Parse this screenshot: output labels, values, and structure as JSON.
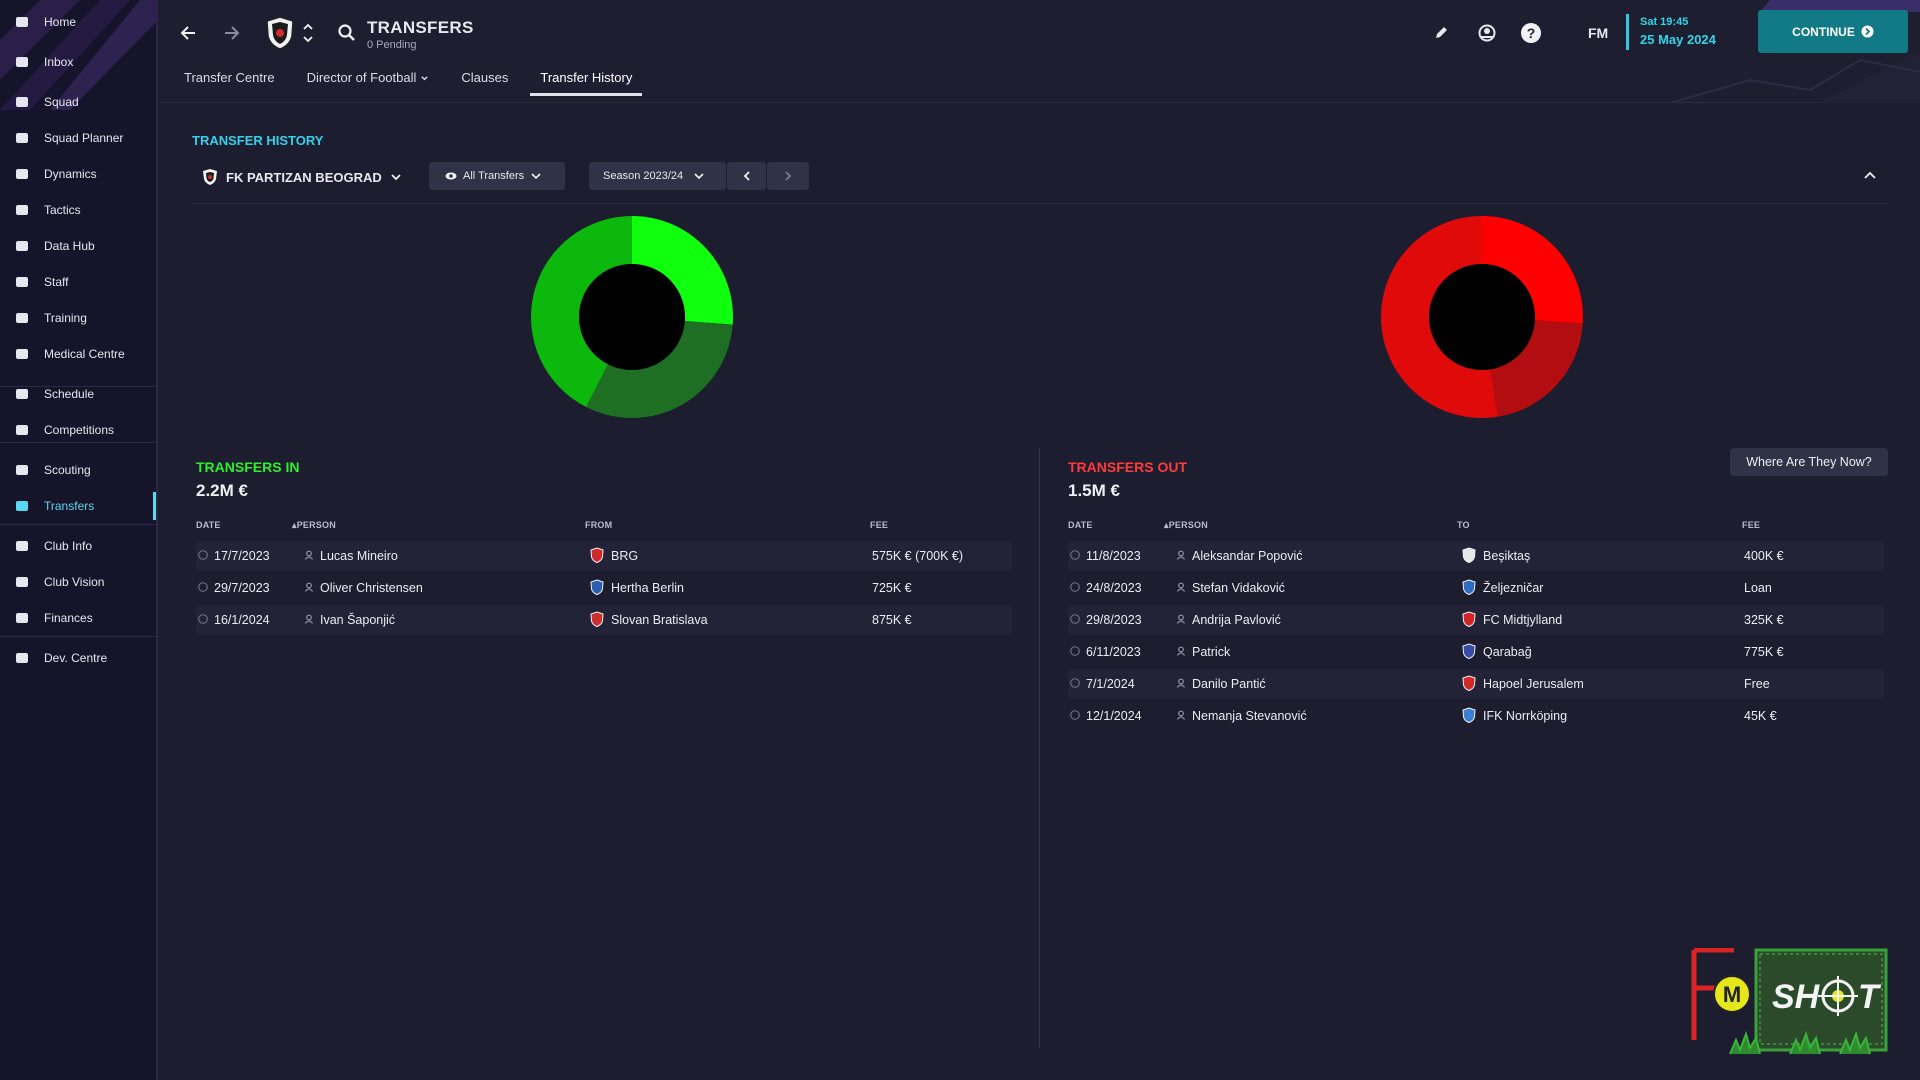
{
  "sidebar": {
    "items": [
      {
        "label": "Home",
        "icon": "home-icon"
      },
      {
        "label": "Inbox",
        "icon": "inbox-icon"
      },
      {
        "label": "Squad",
        "icon": "shirt-icon"
      },
      {
        "label": "Squad Planner",
        "icon": "clipboard-icon"
      },
      {
        "label": "Dynamics",
        "icon": "people-icon"
      },
      {
        "label": "Tactics",
        "icon": "tactics-board-icon"
      },
      {
        "label": "Data Hub",
        "icon": "data-hub-icon"
      },
      {
        "label": "Staff",
        "icon": "staff-icon"
      },
      {
        "label": "Training",
        "icon": "cone-icon"
      },
      {
        "label": "Medical Centre",
        "icon": "medical-kit-icon"
      },
      {
        "label": "Schedule",
        "icon": "calendar-icon"
      },
      {
        "label": "Competitions",
        "icon": "trophy-icon"
      },
      {
        "label": "Scouting",
        "icon": "magnifier-icon"
      },
      {
        "label": "Transfers",
        "icon": "transfer-cycle-icon",
        "active": true
      },
      {
        "label": "Club Info",
        "icon": "shield-icon"
      },
      {
        "label": "Club Vision",
        "icon": "stadium-icon"
      },
      {
        "label": "Finances",
        "icon": "money-icon"
      },
      {
        "label": "Dev. Centre",
        "icon": "progress-icon"
      }
    ]
  },
  "header": {
    "title": "TRANSFERS",
    "subtitle": "0 Pending",
    "fm_label": "FM",
    "time": "Sat 19:45",
    "date": "25 May 2024",
    "continue_label": "CONTINUE"
  },
  "tabs": [
    {
      "label": "Transfer Centre"
    },
    {
      "label": "Director of Football",
      "dropdown": true
    },
    {
      "label": "Clauses"
    },
    {
      "label": "Transfer History",
      "active": true
    }
  ],
  "history": {
    "section_title": "TRANSFER HISTORY",
    "club": "FK PARTIZAN BEOGRAD",
    "filter": "All Transfers",
    "season": "Season 2023/24",
    "where_label": "Where Are They Now?"
  },
  "charts": {
    "in_colors": [
      "#0fff0f",
      "#1e6e24",
      "#0cb80c"
    ],
    "in_shares": [
      0.262,
      0.313,
      0.425
    ],
    "out_colors": [
      "#ff0000",
      "#b30d12",
      "#e00a0a"
    ],
    "out_shares": [
      0.26,
      0.215,
      0.525
    ]
  },
  "transfers_in": {
    "title": "TRANSFERS IN",
    "total": "2.2M €",
    "color": "#2df02d",
    "headers": {
      "date": "DATE",
      "person": "PERSON",
      "club": "FROM",
      "fee": "FEE"
    },
    "rows": [
      {
        "date": "17/7/2023",
        "person": "Lucas Mineiro",
        "club": "BRG",
        "fee": "575K € (700K €)",
        "crest": "#d22a2a"
      },
      {
        "date": "29/7/2023",
        "person": "Oliver Christensen",
        "club": "Hertha Berlin",
        "fee": "725K €",
        "crest": "#2b5fb3"
      },
      {
        "date": "16/1/2024",
        "person": "Ivan Šaponjić",
        "club": "Slovan Bratislava",
        "fee": "875K €",
        "crest": "#c8302e"
      }
    ]
  },
  "transfers_out": {
    "title": "TRANSFERS OUT",
    "total": "1.5M €",
    "color": "#ff3c3c",
    "headers": {
      "date": "DATE",
      "person": "PERSON",
      "club": "TO",
      "fee": "FEE"
    },
    "rows": [
      {
        "date": "11/8/2023",
        "person": "Aleksandar Popović",
        "club": "Beşiktaş",
        "fee": "400K €",
        "crest": "#e8e8e8"
      },
      {
        "date": "24/8/2023",
        "person": "Stefan Vidaković",
        "club": "Željezničar",
        "fee": "Loan",
        "crest": "#2e6cc4"
      },
      {
        "date": "29/8/2023",
        "person": "Andrija Pavlović",
        "club": "FC Midtjylland",
        "fee": "325K €",
        "crest": "#d0242a"
      },
      {
        "date": "6/11/2023",
        "person": "Patrick",
        "club": "Qarabağ",
        "fee": "775K €",
        "crest": "#3a4aa8"
      },
      {
        "date": "7/1/2024",
        "person": "Danilo Pantić",
        "club": "Hapoel Jerusalem",
        "fee": "Free",
        "crest": "#d22a2a"
      },
      {
        "date": "12/1/2024",
        "person": "Nemanja Stevanović",
        "club": "IFK Norrköping",
        "fee": "45K €",
        "crest": "#3b7fd4"
      }
    ]
  },
  "logo": {
    "text": "SH",
    "text2": "T",
    "m": "M"
  }
}
